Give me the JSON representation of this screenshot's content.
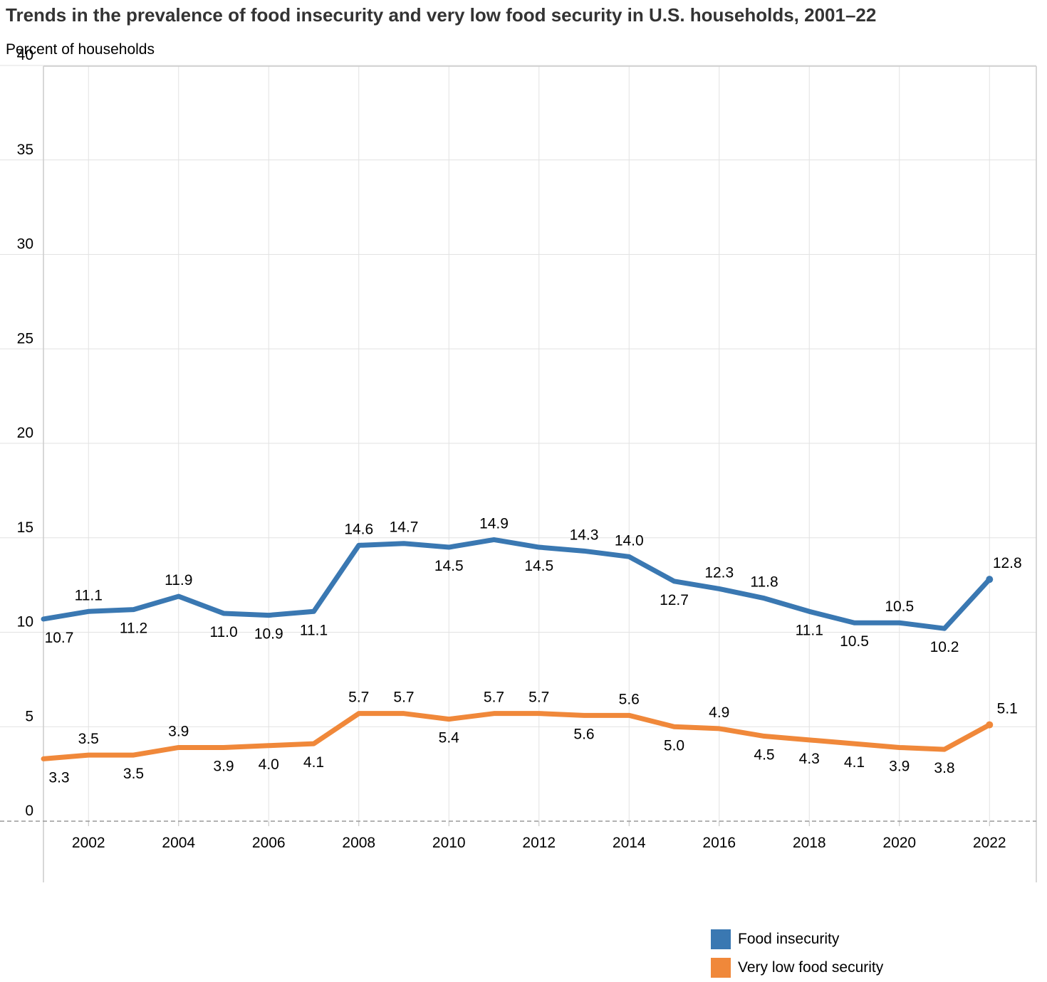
{
  "title": "Trends in the prevalence of food insecurity and very low food security in U.S. households, 2001–22",
  "chart_data": {
    "type": "line",
    "title": "Trends in the prevalence of food insecurity and very low food security in U.S. households, 2001–22",
    "ylabel": "Percent of households",
    "xlabel": "",
    "ylim": [
      0,
      40
    ],
    "xlim": [
      2001,
      2023
    ],
    "y_ticks": [
      "0",
      "5",
      "10",
      "15",
      "20",
      "25",
      "30",
      "35",
      "40"
    ],
    "x_ticks": [
      "2002",
      "2004",
      "2006",
      "2008",
      "2010",
      "2012",
      "2014",
      "2016",
      "2018",
      "2020",
      "2022"
    ],
    "grid": true,
    "legend_position": "bottom-right",
    "x": [
      2001,
      2002,
      2003,
      2004,
      2005,
      2006,
      2007,
      2008,
      2009,
      2010,
      2011,
      2012,
      2013,
      2014,
      2015,
      2016,
      2017,
      2018,
      2019,
      2020,
      2021,
      2022
    ],
    "series": [
      {
        "name": "Food insecurity",
        "color": "#3a78b2",
        "values": [
          10.7,
          11.1,
          11.2,
          11.9,
          11.0,
          10.9,
          11.1,
          14.6,
          14.7,
          14.5,
          14.9,
          14.5,
          14.3,
          14.0,
          12.7,
          12.3,
          11.8,
          11.1,
          10.5,
          10.5,
          10.2,
          12.8
        ],
        "labels": [
          "10.7",
          "11.1",
          "11.2",
          "11.9",
          "11.0",
          "10.9",
          "11.1",
          "14.6",
          "14.7",
          "14.5",
          "14.9",
          "14.5",
          "14.3",
          "14.0",
          "12.7",
          "12.3",
          "11.8",
          "11.1",
          "10.5",
          "10.5",
          "10.2",
          "12.8"
        ],
        "label_positions": [
          "below",
          "above",
          "below",
          "above",
          "below",
          "below",
          "below",
          "above",
          "above",
          "below",
          "above",
          "below",
          "above",
          "above",
          "below",
          "above",
          "above",
          "below",
          "below",
          "above",
          "below",
          "above"
        ]
      },
      {
        "name": "Very low food security",
        "color": "#f0883a",
        "values": [
          3.3,
          3.5,
          3.5,
          3.9,
          3.9,
          4.0,
          4.1,
          5.7,
          5.7,
          5.4,
          5.7,
          5.7,
          5.6,
          5.6,
          5.0,
          4.9,
          4.5,
          4.3,
          4.1,
          3.9,
          3.8,
          5.1
        ],
        "labels": [
          "3.3",
          "3.5",
          "3.5",
          "3.9",
          "3.9",
          "4.0",
          "4.1",
          "5.7",
          "5.7",
          "5.4",
          "5.7",
          "5.7",
          "5.6",
          "5.6",
          "5.0",
          "4.9",
          "4.5",
          "4.3",
          "4.1",
          "3.9",
          "3.8",
          "5.1"
        ],
        "label_positions": [
          "below",
          "above",
          "below",
          "above",
          "below",
          "below",
          "below",
          "above",
          "above",
          "below",
          "above",
          "above",
          "below",
          "above",
          "below",
          "above",
          "below",
          "below",
          "below",
          "below",
          "below",
          "above"
        ]
      }
    ]
  }
}
